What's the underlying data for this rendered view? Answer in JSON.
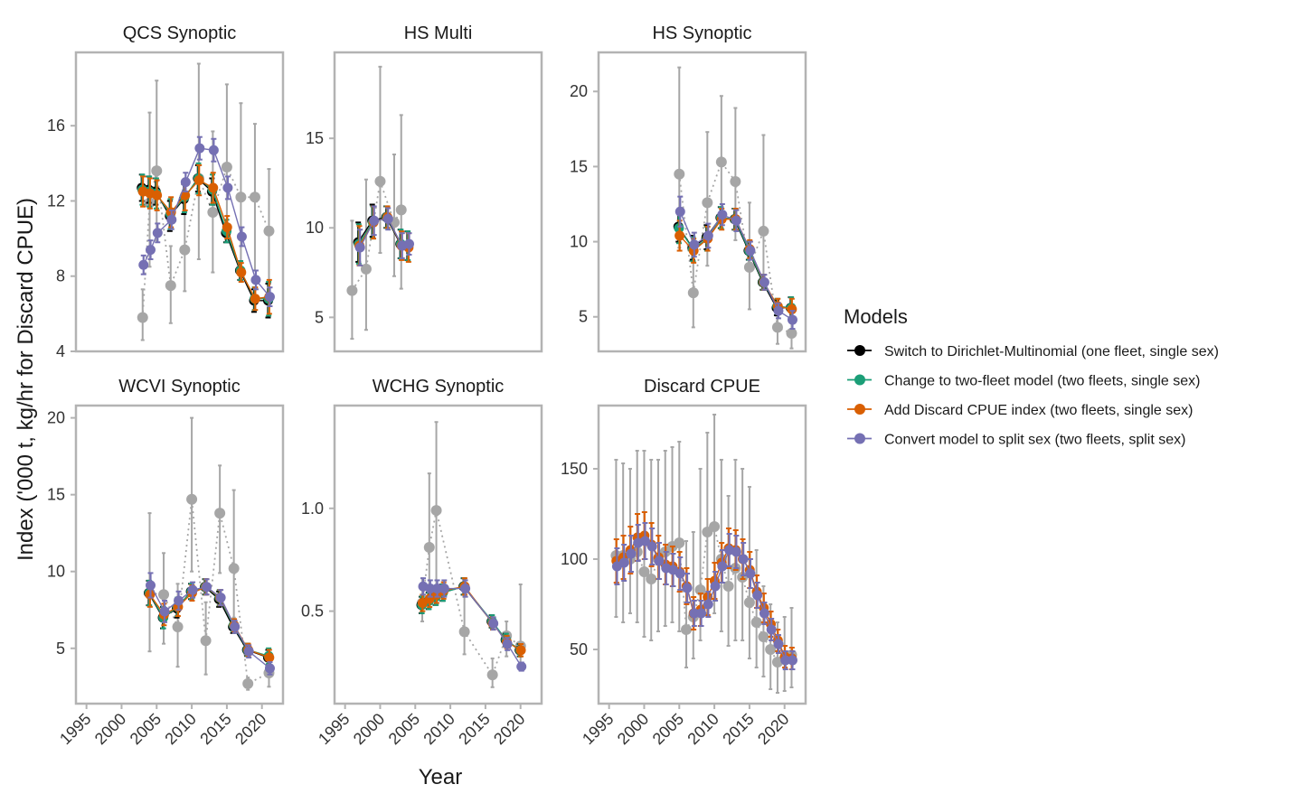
{
  "figure": {
    "ylabel": "Index ('000 t, kg/hr for Discard CPUE)",
    "xlabel": "Year",
    "x_ticks": [
      "1995",
      "2000",
      "2005",
      "2010",
      "2015",
      "2020"
    ],
    "legend": {
      "title": "Models",
      "items": [
        {
          "key": "m1",
          "label": "Switch to Dirichlet-Multinomial (one fleet, single sex)",
          "color": "#000000"
        },
        {
          "key": "m2",
          "label": "Change to two-fleet model (two fleets, single sex)",
          "color": "#1b9e77"
        },
        {
          "key": "m3",
          "label": "Add Discard CPUE index (two fleets, single sex)",
          "color": "#d95f02"
        },
        {
          "key": "m4",
          "label": "Convert model to split sex (two fleets, split sex)",
          "color": "#7570b3"
        }
      ]
    },
    "observed_color": "#a6a6a6"
  },
  "chart_data": [
    {
      "title": "QCS Synoptic",
      "type": "scatter",
      "xlim": [
        1993.5,
        2023
      ],
      "ylim": [
        4,
        19.9
      ],
      "yticks": [
        4,
        8,
        12,
        16
      ],
      "observed": {
        "x": [
          2003,
          2004,
          2005,
          2007,
          2009,
          2011,
          2013,
          2015,
          2017,
          2019,
          2021
        ],
        "y": [
          5.8,
          11.9,
          13.6,
          7.5,
          9.4,
          13.2,
          11.4,
          13.8,
          12.2,
          12.2,
          10.4
        ],
        "lo": [
          4.6,
          8.5,
          9.9,
          5.5,
          7.2,
          8.9,
          8.2,
          10.4,
          7.9,
          8.3,
          7.2
        ],
        "hi": [
          7.3,
          16.7,
          18.4,
          9.6,
          12.6,
          19.3,
          15.7,
          18.2,
          17.2,
          16.1,
          13.7
        ]
      },
      "fits": {
        "x": [
          2003,
          2004,
          2005,
          2007,
          2009,
          2011,
          2013,
          2015,
          2017,
          2019,
          2021
        ],
        "m1": {
          "y": [
            12.7,
            12.6,
            12.5,
            11.2,
            12.1,
            13.2,
            12.5,
            10.3,
            8.3,
            6.7,
            6.7
          ],
          "e": [
            0.7,
            0.7,
            0.7,
            0.8,
            0.8,
            0.7,
            0.7,
            0.5,
            0.5,
            0.6,
            0.9
          ]
        },
        "m2": {
          "y": [
            12.6,
            12.5,
            12.4,
            11.3,
            12.2,
            13.2,
            12.6,
            10.4,
            8.3,
            6.8,
            6.8
          ],
          "e": [
            0.8,
            0.8,
            0.8,
            0.8,
            0.8,
            0.8,
            0.8,
            0.6,
            0.5,
            0.6,
            0.9
          ]
        },
        "m3": {
          "y": [
            12.5,
            12.4,
            12.3,
            11.4,
            12.3,
            13.1,
            12.7,
            10.6,
            8.2,
            6.8,
            6.9
          ],
          "e": [
            0.8,
            0.8,
            0.8,
            0.8,
            0.8,
            0.8,
            0.8,
            0.6,
            0.5,
            0.6,
            0.9
          ]
        },
        "m4": {
          "y": [
            8.6,
            9.4,
            10.3,
            11.0,
            13.0,
            14.8,
            14.7,
            12.7,
            10.1,
            7.8,
            6.9
          ],
          "e": [
            0.5,
            0.5,
            0.5,
            0.5,
            0.5,
            0.6,
            0.6,
            0.6,
            0.5,
            0.5,
            0.5
          ]
        }
      }
    },
    {
      "title": "HS Multi",
      "type": "scatter",
      "xlim": [
        1993.5,
        2023
      ],
      "ylim": [
        3.1,
        19.8
      ],
      "yticks": [
        5,
        10,
        15
      ],
      "observed": {
        "x": [
          1996,
          1998,
          2000,
          2002,
          2003
        ],
        "y": [
          6.5,
          7.7,
          12.6,
          10.3,
          11.0
        ],
        "lo": [
          3.8,
          4.3,
          8.6,
          7.3,
          6.6
        ],
        "hi": [
          10.4,
          12.7,
          19.0,
          14.1,
          16.3
        ]
      },
      "fits": {
        "x": [
          1997,
          1999,
          2001,
          2003,
          2004
        ],
        "m1": {
          "y": [
            9.2,
            10.4,
            10.6,
            9.1,
            9.0
          ],
          "e": [
            1.1,
            0.9,
            0.6,
            0.8,
            0.8
          ]
        },
        "m2": {
          "y": [
            9.1,
            10.3,
            10.6,
            9.1,
            9.0
          ],
          "e": [
            1.1,
            0.9,
            0.6,
            0.8,
            0.8
          ]
        },
        "m3": {
          "y": [
            9.0,
            10.3,
            10.6,
            9.0,
            8.9
          ],
          "e": [
            1.1,
            0.9,
            0.6,
            0.8,
            0.8
          ]
        },
        "m4": {
          "y": [
            8.9,
            10.4,
            10.5,
            9.0,
            9.1
          ],
          "e": [
            1.0,
            0.8,
            0.6,
            0.7,
            0.6
          ]
        }
      }
    },
    {
      "title": "HS Synoptic",
      "type": "scatter",
      "xlim": [
        1993.5,
        2023
      ],
      "ylim": [
        2.7,
        22.6
      ],
      "yticks": [
        5,
        10,
        15,
        20
      ],
      "observed": {
        "x": [
          2005,
          2007,
          2009,
          2011,
          2013,
          2015,
          2017,
          2019,
          2021
        ],
        "y": [
          14.5,
          6.6,
          12.6,
          15.3,
          14.0,
          8.3,
          10.7,
          4.3,
          3.9
        ],
        "lo": [
          9.6,
          4.3,
          8.4,
          11.0,
          10.1,
          5.5,
          7.0,
          3.2,
          2.9
        ],
        "hi": [
          21.6,
          10.2,
          17.3,
          19.7,
          18.9,
          12.6,
          17.1,
          5.7,
          5.2
        ]
      },
      "fits": {
        "x": [
          2005,
          2007,
          2009,
          2011,
          2013,
          2015,
          2017,
          2019,
          2021
        ],
        "m1": {
          "y": [
            11.0,
            9.6,
            10.3,
            11.6,
            11.5,
            9.4,
            7.3,
            5.6,
            5.6
          ],
          "e": [
            1.0,
            0.8,
            0.8,
            0.7,
            0.7,
            0.6,
            0.5,
            0.5,
            0.7
          ]
        },
        "m2": {
          "y": [
            10.9,
            9.5,
            10.2,
            11.6,
            11.5,
            9.4,
            7.3,
            5.7,
            5.6
          ],
          "e": [
            1.0,
            0.8,
            0.8,
            0.7,
            0.7,
            0.6,
            0.5,
            0.5,
            0.7
          ]
        },
        "m3": {
          "y": [
            10.4,
            9.4,
            10.2,
            11.5,
            11.5,
            9.5,
            7.3,
            5.7,
            5.5
          ],
          "e": [
            1.0,
            0.8,
            0.8,
            0.7,
            0.7,
            0.6,
            0.5,
            0.5,
            0.7
          ]
        },
        "m4": {
          "y": [
            12.0,
            9.8,
            10.4,
            11.8,
            11.4,
            9.4,
            7.3,
            5.4,
            4.8
          ],
          "e": [
            1.0,
            0.8,
            0.8,
            0.7,
            0.7,
            0.6,
            0.5,
            0.5,
            0.6
          ]
        }
      }
    },
    {
      "title": "WCVI Synoptic",
      "type": "scatter",
      "xlim": [
        1993.5,
        2023
      ],
      "ylim": [
        1.4,
        20.8
      ],
      "yticks": [
        5,
        10,
        15,
        20
      ],
      "observed": {
        "x": [
          2004,
          2006,
          2008,
          2010,
          2012,
          2014,
          2016,
          2018,
          2021
        ],
        "y": [
          8.6,
          8.5,
          6.4,
          14.7,
          5.5,
          13.8,
          10.2,
          2.7,
          3.4
        ],
        "lo": [
          4.8,
          5.3,
          3.8,
          10.0,
          3.3,
          9.9,
          7.0,
          2.3,
          2.5
        ],
        "hi": [
          13.8,
          11.2,
          9.2,
          20.0,
          8.0,
          16.9,
          15.3,
          3.1,
          4.2
        ]
      },
      "fits": {
        "x": [
          2004,
          2006,
          2008,
          2010,
          2012,
          2014,
          2016,
          2018,
          2021
        ],
        "m1": {
          "y": [
            8.6,
            7.0,
            7.6,
            8.7,
            9.0,
            8.2,
            6.4,
            4.9,
            4.4
          ],
          "e": [
            0.8,
            0.7,
            0.6,
            0.5,
            0.5,
            0.5,
            0.4,
            0.4,
            0.5
          ]
        },
        "m2": {
          "y": [
            8.6,
            7.0,
            7.7,
            8.7,
            9.0,
            8.3,
            6.5,
            4.9,
            4.5
          ],
          "e": [
            0.8,
            0.7,
            0.6,
            0.5,
            0.5,
            0.5,
            0.4,
            0.4,
            0.5
          ]
        },
        "m3": {
          "y": [
            8.5,
            7.2,
            7.7,
            8.6,
            9.0,
            8.3,
            6.5,
            4.9,
            4.4
          ],
          "e": [
            0.8,
            0.7,
            0.6,
            0.5,
            0.5,
            0.5,
            0.4,
            0.4,
            0.5
          ]
        },
        "m4": {
          "y": [
            9.1,
            7.4,
            8.1,
            8.8,
            9.0,
            8.3,
            6.4,
            4.8,
            3.7
          ],
          "e": [
            0.8,
            0.7,
            0.6,
            0.5,
            0.5,
            0.5,
            0.4,
            0.4,
            0.4
          ]
        }
      }
    },
    {
      "title": "WCHG Synoptic",
      "type": "scatter",
      "xlim": [
        1993.5,
        2023
      ],
      "ylim": [
        0.05,
        1.5
      ],
      "yticks": [
        0.5,
        1.0
      ],
      "observed": {
        "x": [
          2006,
          2007,
          2008,
          2012,
          2016,
          2018,
          2020
        ],
        "y": [
          0.54,
          0.81,
          0.99,
          0.4,
          0.19,
          0.38,
          0.33
        ],
        "lo": [
          0.45,
          0.6,
          0.62,
          0.29,
          0.13,
          0.28,
          0.23
        ],
        "hi": [
          0.66,
          1.17,
          1.42,
          0.57,
          0.27,
          0.45,
          0.63
        ]
      },
      "fits": {
        "x": [
          2006,
          2007,
          2008,
          2009,
          2012,
          2016,
          2018,
          2020
        ],
        "m1": {
          "y": [
            0.53,
            0.55,
            0.57,
            0.59,
            0.62,
            0.45,
            0.36,
            0.31
          ],
          "e": [
            0.04,
            0.04,
            0.04,
            0.04,
            0.04,
            0.03,
            0.03,
            0.03
          ]
        },
        "m2": {
          "y": [
            0.53,
            0.55,
            0.57,
            0.59,
            0.62,
            0.45,
            0.36,
            0.31
          ],
          "e": [
            0.04,
            0.04,
            0.04,
            0.04,
            0.04,
            0.03,
            0.03,
            0.03
          ]
        },
        "m3": {
          "y": [
            0.54,
            0.56,
            0.58,
            0.6,
            0.62,
            0.44,
            0.35,
            0.31
          ],
          "e": [
            0.04,
            0.04,
            0.04,
            0.04,
            0.04,
            0.03,
            0.03,
            0.03
          ]
        },
        "m4": {
          "y": [
            0.62,
            0.61,
            0.61,
            0.61,
            0.61,
            0.44,
            0.34,
            0.23
          ],
          "e": [
            0.04,
            0.04,
            0.04,
            0.04,
            0.04,
            0.03,
            0.03,
            0.02
          ]
        }
      }
    },
    {
      "title": "Discard CPUE",
      "type": "scatter",
      "xlim": [
        1993.5,
        2023
      ],
      "ylim": [
        20,
        185
      ],
      "yticks": [
        50,
        100,
        150
      ],
      "observed": {
        "x": [
          1996,
          1997,
          1998,
          1999,
          2000,
          2001,
          2002,
          2003,
          2004,
          2005,
          2006,
          2007,
          2008,
          2009,
          2010,
          2011,
          2012,
          2013,
          2014,
          2015,
          2016,
          2017,
          2018,
          2019,
          2020,
          2021
        ],
        "y": [
          102,
          102,
          100,
          104,
          93,
          89,
          100,
          104,
          107,
          109,
          61,
          68,
          83,
          115,
          118,
          100,
          85,
          95,
          90,
          76,
          65,
          57,
          50,
          43,
          45,
          47
        ],
        "lo": [
          68,
          65,
          70,
          65,
          57,
          55,
          60,
          63,
          65,
          60,
          40,
          45,
          55,
          70,
          70,
          60,
          52,
          55,
          55,
          45,
          40,
          35,
          28,
          26,
          27,
          29
        ],
        "hi": [
          155,
          153,
          150,
          160,
          160,
          155,
          155,
          160,
          162,
          165,
          110,
          115,
          150,
          170,
          180,
          155,
          135,
          155,
          150,
          140,
          105,
          85,
          75,
          65,
          68,
          73
        ]
      },
      "fits": {
        "x": [
          1996,
          1997,
          1998,
          1999,
          2000,
          2001,
          2002,
          2003,
          2004,
          2005,
          2006,
          2007,
          2008,
          2009,
          2010,
          2011,
          2012,
          2013,
          2014,
          2015,
          2016,
          2017,
          2018,
          2019,
          2020,
          2021
        ],
        "m3": {
          "y": [
            99,
            101,
            105,
            112,
            113,
            108,
            101,
            97,
            96,
            93,
            85,
            70,
            72,
            79,
            88,
            98,
            106,
            105,
            100,
            94,
            82,
            73,
            64,
            55,
            46,
            45
          ],
          "e": [
            12,
            12,
            13,
            13,
            13,
            12,
            12,
            11,
            11,
            11,
            10,
            9,
            9,
            10,
            10,
            11,
            11,
            11,
            11,
            10,
            9,
            8,
            7,
            6,
            6,
            6
          ]
        },
        "m4": {
          "y": [
            96,
            98,
            103,
            109,
            110,
            107,
            99,
            95,
            94,
            92,
            84,
            70,
            70,
            75,
            85,
            96,
            105,
            104,
            100,
            92,
            80,
            70,
            61,
            53,
            44,
            44
          ],
          "e": [
            10,
            10,
            10,
            10,
            10,
            10,
            10,
            9,
            9,
            9,
            8,
            7,
            7,
            7,
            8,
            9,
            9,
            9,
            9,
            8,
            7,
            6,
            6,
            5,
            5,
            5
          ]
        }
      }
    }
  ]
}
